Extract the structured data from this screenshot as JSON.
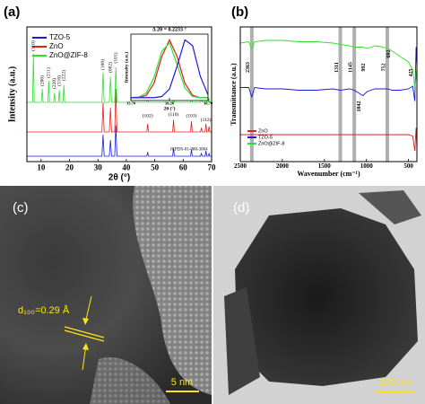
{
  "chart_data": [
    {
      "type": "line",
      "panel": "(a)",
      "xlabel": "2θ (°)",
      "ylabel": "Intensity (a.u.)",
      "x": [
        5,
        7.0,
        7.3,
        7.6,
        10.1,
        10.4,
        10.7,
        12.4,
        12.7,
        13.0,
        14.4,
        14.7,
        15.0,
        16.1,
        16.4,
        16.7,
        17.7,
        18.0,
        18.3,
        31.4,
        31.8,
        32.2,
        34.0,
        34.4,
        34.8,
        35.9,
        36.3,
        36.7,
        47.2,
        47.5,
        47.8,
        56.3,
        56.6,
        56.9,
        62.6,
        62.9,
        63.2,
        66.1,
        66.4,
        66.7,
        67.7,
        68.0,
        68.3,
        68.8,
        69.1,
        69.4,
        70
      ],
      "series": [
        {
          "name": "TZO-5",
          "color": "#1a1adc",
          "values": [
            4,
            4,
            4,
            4,
            4,
            4,
            4,
            4,
            4,
            4,
            4,
            4,
            4,
            4,
            4,
            4,
            4,
            4,
            4,
            4,
            20,
            4,
            4,
            16,
            4,
            4,
            27,
            4,
            4,
            7,
            4,
            4,
            10,
            4,
            4,
            9,
            4,
            4,
            6,
            4,
            4,
            8,
            4,
            4,
            6,
            4,
            4
          ]
        },
        {
          "name": "ZnO",
          "color": "#e0201b",
          "values": [
            22,
            22,
            22,
            22,
            22,
            22,
            22,
            22,
            22,
            22,
            22,
            22,
            22,
            22,
            22,
            22,
            22,
            22,
            22,
            22,
            44,
            22,
            22,
            40,
            22,
            22,
            54,
            22,
            22,
            28,
            22,
            22,
            31,
            22,
            22,
            30,
            22,
            22,
            25,
            22,
            22,
            28,
            22,
            22,
            26,
            22,
            22
          ]
        },
        {
          "name": "ZnO@ZIF-8",
          "color": "#2ee02e",
          "values": [
            44,
            44,
            80,
            44,
            44,
            54,
            44,
            44,
            60,
            44,
            44,
            51,
            44,
            44,
            53,
            44,
            44,
            57,
            44,
            44,
            66,
            44,
            44,
            63,
            44,
            44,
            70,
            44,
            44,
            50,
            44,
            44,
            52,
            44,
            44,
            51,
            44,
            44,
            47,
            44,
            44,
            49,
            44,
            44,
            47,
            44,
            44
          ]
        }
      ],
      "xlim": [
        5,
        70
      ],
      "xticks": [
        10,
        20,
        30,
        40,
        50,
        60,
        70
      ],
      "ylim": [
        0,
        100
      ],
      "annotations": [
        "(110)",
        "(200)",
        "(211)",
        "(220)",
        "(310)",
        "(222)",
        "(100)",
        "(002)",
        "(101)",
        "(102)",
        "(110)",
        "(103)",
        "(112)",
        "JCPDS-01-080-3004"
      ]
    },
    {
      "type": "line",
      "xlabel": "2θ (°)",
      "ylabel": "Intensity (a.u.)",
      "annotation": "Δ 2θ = 0.2233 °",
      "x": [
        35.7,
        35.8,
        35.9,
        36.0,
        36.1,
        36.2,
        36.3,
        36.4,
        36.5,
        36.6,
        36.7
      ],
      "series": [
        {
          "color": "#e0201b",
          "values": [
            5,
            5,
            9,
            30,
            76,
            105,
            76,
            30,
            9,
            5,
            5
          ]
        },
        {
          "color": "#2ee02e",
          "values": [
            5,
            6,
            13,
            40,
            85,
            100,
            62,
            22,
            7,
            5,
            5
          ]
        },
        {
          "color": "#1a1adc",
          "values": [
            5,
            5,
            5,
            5,
            7,
            20,
            60,
            105,
            95,
            42,
            10
          ]
        }
      ],
      "xlim": [
        35.7,
        36.7
      ],
      "xticks": [
        {
          "value": 35.7,
          "label": "35.70"
        },
        {
          "value": 36.2,
          "label": "36.20"
        },
        {
          "value": 36.7,
          "label": "36.70"
        }
      ],
      "ylim": [
        0,
        115
      ]
    },
    {
      "type": "line",
      "panel": "(b)",
      "xlabel": "Wavenumber (cm⁻¹)",
      "ylabel": "Transmittance (a.u.)",
      "x": [
        2500,
        2400,
        2363,
        2330,
        2200,
        2000,
        1800,
        1600,
        1400,
        1311,
        1200,
        1145,
        1042,
        992,
        900,
        800,
        752,
        692,
        600,
        500,
        450,
        425,
        410,
        400
      ],
      "series": [
        {
          "name": "ZnO",
          "color": "#e0201b",
          "values": [
            20,
            20,
            20,
            20,
            20,
            20,
            20,
            20,
            20,
            20,
            20,
            20,
            20,
            20,
            20,
            20,
            20,
            20,
            20,
            20,
            19,
            8,
            25,
            10
          ]
        },
        {
          "name": "TZO-5",
          "color": "#1a1adc",
          "values": [
            55,
            55,
            48,
            55,
            54,
            54,
            53,
            53,
            54,
            53,
            54,
            53,
            49,
            52,
            54,
            54,
            54,
            53,
            53,
            54,
            56,
            45,
            85,
            70
          ]
        },
        {
          "name": "ZnO@ZIF-8",
          "color": "#2ee02e",
          "values": [
            88,
            89,
            84,
            89,
            90,
            90,
            89,
            89,
            88,
            87,
            86,
            85,
            85,
            84,
            86,
            85,
            84,
            82,
            78,
            74,
            68,
            55,
            62,
            70
          ]
        }
      ],
      "xlim": [
        2500,
        400
      ],
      "xticks": [
        2500,
        2000,
        1500,
        1000,
        500
      ],
      "ylim": [
        0,
        100
      ],
      "highlight_x": [
        2363,
        1311,
        1145,
        752
      ],
      "peak_labels": [
        2363,
        1311,
        1145,
        992,
        752,
        692,
        425,
        1042
      ]
    }
  ],
  "images": [
    {
      "panel": "(c)",
      "annotation": "d₁₀₀=0.29 Å",
      "scale_bar": "5 nm"
    },
    {
      "panel": "(d)",
      "scale_bar": "100 nm"
    }
  ]
}
